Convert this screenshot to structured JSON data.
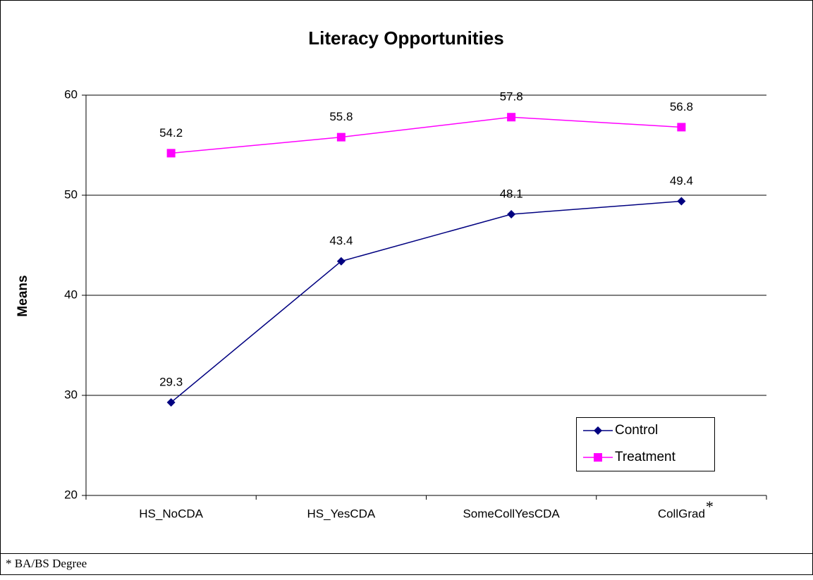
{
  "chart_data": {
    "type": "line",
    "title": "Literacy Opportunities",
    "y_label": "Means",
    "categories": [
      "HS_NoCDA",
      "HS_YesCDA",
      "SomeCollYesCDA",
      "CollGrad"
    ],
    "category_notes": [
      null,
      null,
      null,
      "*"
    ],
    "series": [
      {
        "name": "Control",
        "color": "#000080",
        "marker": "diamond",
        "values": [
          29.3,
          43.4,
          48.1,
          49.4
        ]
      },
      {
        "name": "Treatment",
        "color": "#ff00ff",
        "marker": "square",
        "values": [
          54.2,
          55.8,
          57.8,
          56.8
        ]
      }
    ],
    "ylim": [
      20,
      60
    ],
    "yticks": [
      20,
      30,
      40,
      50,
      60
    ],
    "grid": true,
    "legend": "lower right",
    "footnote": "* BA/BS Degree"
  }
}
